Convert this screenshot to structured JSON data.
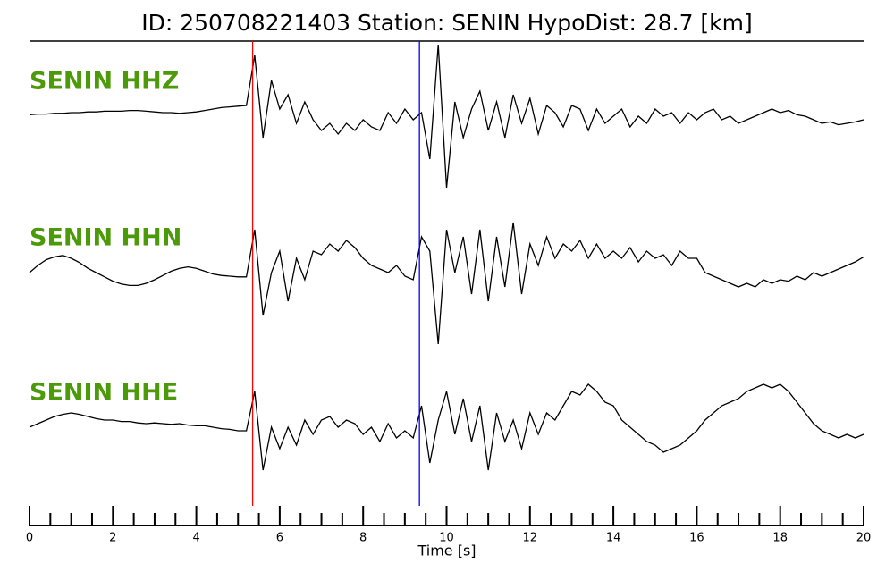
{
  "chart_data": {
    "type": "seismogram",
    "title": "ID: 250708221403   Station: SENIN   HypoDist:    28.7 [km]",
    "xlabel": "Time [s]",
    "xlim": [
      0,
      20
    ],
    "xticks": [
      0,
      2,
      4,
      6,
      8,
      10,
      12,
      14,
      16,
      18,
      20
    ],
    "xminorticks": [
      0.5,
      1,
      1.5,
      2.5,
      3,
      3.5,
      4.5,
      5,
      5.5,
      6.5,
      7,
      7.5,
      8.5,
      9,
      9.5,
      10.5,
      11,
      11.5,
      12.5,
      13,
      13.5,
      14.5,
      15,
      15.5,
      16.5,
      17,
      17.5,
      18.5,
      19,
      19.5
    ],
    "ylim": [
      -1,
      1
    ],
    "label_color": "#4c9a0a",
    "picks": [
      {
        "time": 5.35,
        "color": "#ff0000"
      },
      {
        "time": 9.35,
        "color": "#0000ff"
      }
    ],
    "x": [
      0,
      0.2,
      0.4,
      0.6,
      0.8,
      1,
      1.2,
      1.4,
      1.6,
      1.8,
      2,
      2.2,
      2.4,
      2.6,
      2.8,
      3,
      3.2,
      3.4,
      3.6,
      3.8,
      4,
      4.2,
      4.4,
      4.6,
      4.8,
      5,
      5.2,
      5.4,
      5.6,
      5.8,
      6,
      6.2,
      6.4,
      6.6,
      6.8,
      7,
      7.2,
      7.4,
      7.6,
      7.8,
      8,
      8.2,
      8.4,
      8.6,
      8.8,
      9,
      9.2,
      9.4,
      9.6,
      9.8,
      10,
      10.2,
      10.4,
      10.6,
      10.8,
      11,
      11.2,
      11.4,
      11.6,
      11.8,
      12,
      12.2,
      12.4,
      12.6,
      12.8,
      13,
      13.2,
      13.4,
      13.6,
      13.8,
      14,
      14.2,
      14.4,
      14.6,
      14.8,
      15,
      15.2,
      15.4,
      15.6,
      15.8,
      16,
      16.2,
      16.4,
      16.6,
      16.8,
      17,
      17.2,
      17.4,
      17.6,
      17.8,
      18,
      18.2,
      18.4,
      18.6,
      18.8,
      19,
      19.2,
      19.4,
      19.6,
      19.8,
      20
    ],
    "series": [
      {
        "name": "SENIN HHZ",
        "color": "#000000",
        "values": [
          0.02,
          0.03,
          0.03,
          0.04,
          0.04,
          0.05,
          0.05,
          0.06,
          0.06,
          0.07,
          0.07,
          0.07,
          0.08,
          0.08,
          0.07,
          0.06,
          0.05,
          0.05,
          0.04,
          0.05,
          0.06,
          0.08,
          0.1,
          0.12,
          0.13,
          0.14,
          0.15,
          0.85,
          -0.3,
          0.5,
          0.1,
          0.3,
          -0.1,
          0.2,
          -0.05,
          -0.2,
          -0.1,
          -0.25,
          -0.1,
          -0.2,
          -0.05,
          -0.15,
          -0.2,
          0.05,
          -0.1,
          0.1,
          -0.05,
          0.05,
          -0.6,
          1.0,
          -1.0,
          0.2,
          -0.3,
          0.1,
          0.35,
          -0.2,
          0.2,
          -0.3,
          0.3,
          -0.1,
          0.25,
          -0.25,
          0.15,
          0.05,
          -0.15,
          0.15,
          0.1,
          -0.2,
          0.1,
          -0.1,
          0.0,
          0.1,
          -0.15,
          0.0,
          -0.1,
          0.1,
          0.0,
          0.05,
          -0.1,
          0.05,
          -0.05,
          0.05,
          0.1,
          -0.05,
          0.0,
          -0.1,
          -0.05,
          0.0,
          0.05,
          0.1,
          0.05,
          0.08,
          0.02,
          0.0,
          -0.05,
          -0.1,
          -0.08,
          -0.12,
          -0.1,
          -0.08,
          -0.05
        ]
      },
      {
        "name": "SENIN HHN",
        "color": "#000000",
        "values": [
          0.0,
          0.1,
          0.18,
          0.22,
          0.24,
          0.2,
          0.14,
          0.06,
          0.0,
          -0.06,
          -0.12,
          -0.16,
          -0.18,
          -0.18,
          -0.15,
          -0.1,
          -0.04,
          0.02,
          0.06,
          0.08,
          0.06,
          0.02,
          -0.02,
          -0.04,
          -0.05,
          -0.06,
          -0.06,
          0.6,
          -0.6,
          0.0,
          0.3,
          -0.4,
          0.2,
          -0.1,
          0.3,
          0.25,
          0.4,
          0.3,
          0.45,
          0.35,
          0.2,
          0.1,
          0.05,
          0.0,
          0.1,
          -0.05,
          -0.1,
          0.5,
          0.3,
          -1.0,
          0.6,
          0.0,
          0.5,
          -0.3,
          0.6,
          -0.4,
          0.5,
          -0.2,
          0.7,
          -0.3,
          0.4,
          0.1,
          0.5,
          0.2,
          0.4,
          0.3,
          0.45,
          0.2,
          0.4,
          0.2,
          0.3,
          0.2,
          0.35,
          0.15,
          0.3,
          0.2,
          0.25,
          0.1,
          0.3,
          0.2,
          0.2,
          0.0,
          -0.05,
          -0.1,
          -0.15,
          -0.2,
          -0.15,
          -0.2,
          -0.1,
          -0.15,
          -0.1,
          -0.12,
          -0.05,
          -0.1,
          0.0,
          -0.05,
          0.0,
          0.05,
          0.1,
          0.15,
          0.22
        ]
      },
      {
        "name": "SENIN HHE",
        "color": "#000000",
        "values": [
          0.0,
          0.05,
          0.1,
          0.15,
          0.18,
          0.2,
          0.18,
          0.15,
          0.12,
          0.1,
          0.1,
          0.08,
          0.08,
          0.06,
          0.05,
          0.06,
          0.05,
          0.04,
          0.05,
          0.03,
          0.02,
          0.02,
          0.0,
          -0.02,
          -0.03,
          -0.05,
          -0.05,
          0.5,
          -0.6,
          0.0,
          -0.3,
          0.0,
          -0.25,
          0.1,
          -0.1,
          0.1,
          0.15,
          0.0,
          0.1,
          0.05,
          -0.1,
          0.0,
          -0.2,
          0.05,
          -0.15,
          -0.05,
          -0.15,
          0.3,
          -0.5,
          0.1,
          0.5,
          -0.1,
          0.4,
          -0.2,
          0.3,
          -0.6,
          0.2,
          -0.2,
          0.1,
          -0.3,
          0.2,
          -0.1,
          0.2,
          0.1,
          0.3,
          0.5,
          0.45,
          0.6,
          0.5,
          0.35,
          0.3,
          0.1,
          0.0,
          -0.1,
          -0.2,
          -0.25,
          -0.35,
          -0.3,
          -0.25,
          -0.15,
          -0.05,
          0.1,
          0.2,
          0.3,
          0.35,
          0.4,
          0.5,
          0.55,
          0.6,
          0.55,
          0.6,
          0.5,
          0.35,
          0.2,
          0.05,
          -0.05,
          -0.1,
          -0.15,
          -0.1,
          -0.15,
          -0.1
        ]
      }
    ]
  }
}
